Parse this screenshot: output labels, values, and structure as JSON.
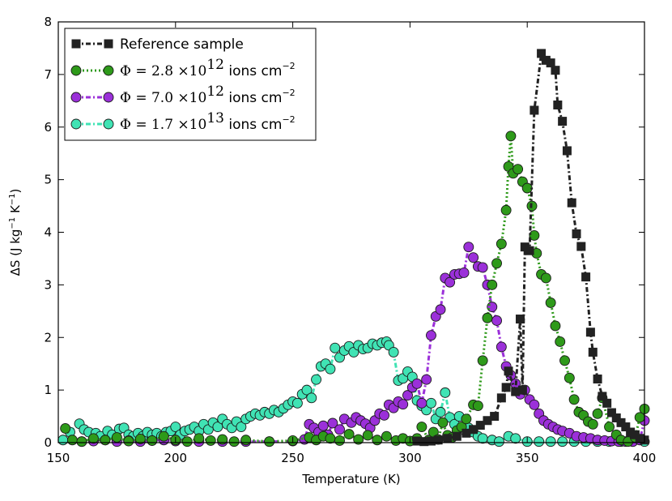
{
  "chart_data": {
    "type": "line",
    "title": "",
    "xlabel": "Temperature (K)",
    "ylabel_parts": {
      "base": "ΔS (J kg",
      "exp1": "−1",
      "mid": " K",
      "exp2": "−1",
      "end": ")"
    },
    "xlim": [
      150,
      400
    ],
    "ylim": [
      0,
      8
    ],
    "xticks": [
      150,
      200,
      250,
      300,
      350,
      400
    ],
    "yticks": [
      0,
      1,
      2,
      3,
      4,
      5,
      6,
      7,
      8
    ],
    "grid": false,
    "legend_position": "upper-left",
    "series": [
      {
        "name": "Reference sample",
        "legend": {
          "plain": "Reference sample"
        },
        "color": "#222222",
        "marker": "square",
        "line": "dash-dot",
        "points": [
          [
            303,
            0.03
          ],
          [
            306,
            0.02
          ],
          [
            309,
            0.03
          ],
          [
            312,
            0.05
          ],
          [
            316,
            0.08
          ],
          [
            320,
            0.12
          ],
          [
            324,
            0.18
          ],
          [
            327,
            0.25
          ],
          [
            330,
            0.33
          ],
          [
            333,
            0.42
          ],
          [
            336,
            0.5
          ],
          [
            339,
            0.85
          ],
          [
            341,
            1.05
          ],
          [
            342,
            1.36
          ],
          [
            345,
            0.97
          ],
          [
            347,
            2.35
          ],
          [
            348,
            1.0
          ],
          [
            349,
            3.72
          ],
          [
            351,
            3.65
          ],
          [
            353,
            6.32
          ],
          [
            356,
            7.4
          ],
          [
            358,
            7.27
          ],
          [
            360,
            7.22
          ],
          [
            362,
            7.08
          ],
          [
            363,
            6.42
          ],
          [
            365,
            6.11
          ],
          [
            367,
            5.55
          ],
          [
            369,
            4.56
          ],
          [
            371,
            3.97
          ],
          [
            373,
            3.73
          ],
          [
            375,
            3.15
          ],
          [
            377,
            2.1
          ],
          [
            378,
            1.72
          ],
          [
            380,
            1.21
          ],
          [
            382,
            0.88
          ],
          [
            384,
            0.75
          ],
          [
            386,
            0.57
          ],
          [
            388,
            0.47
          ],
          [
            390,
            0.38
          ],
          [
            392,
            0.3
          ],
          [
            394,
            0.2
          ],
          [
            396,
            0.15
          ],
          [
            398,
            0.08
          ],
          [
            400,
            0.05
          ]
        ]
      },
      {
        "name": "Φ = 2.8 ×10^12 ions cm^−2",
        "legend": {
          "phi": "Φ = 2.8 ×10",
          "exp": "12",
          "unit": " ions cm",
          "unit_exp": "−2"
        },
        "color": "#2e9a1a",
        "marker": "circle",
        "line": "dotted",
        "points": [
          [
            153,
            0.27
          ],
          [
            156,
            0.05
          ],
          [
            160,
            0.02
          ],
          [
            165,
            0.08
          ],
          [
            170,
            0.05
          ],
          [
            175,
            0.1
          ],
          [
            180,
            0.03
          ],
          [
            185,
            0.07
          ],
          [
            190,
            0.04
          ],
          [
            195,
            0.12
          ],
          [
            200,
            0.05
          ],
          [
            205,
            0.02
          ],
          [
            210,
            0.08
          ],
          [
            215,
            0.04
          ],
          [
            220,
            0.06
          ],
          [
            225,
            0.02
          ],
          [
            230,
            0.05
          ],
          [
            240,
            0.02
          ],
          [
            250,
            0.04
          ],
          [
            257,
            0.1
          ],
          [
            260,
            0.05
          ],
          [
            263,
            0.12
          ],
          [
            266,
            0.08
          ],
          [
            270,
            0.04
          ],
          [
            274,
            0.16
          ],
          [
            278,
            0.06
          ],
          [
            282,
            0.14
          ],
          [
            286,
            0.05
          ],
          [
            290,
            0.12
          ],
          [
            294,
            0.04
          ],
          [
            297,
            0.08
          ],
          [
            300,
            0.03
          ],
          [
            303,
            0.08
          ],
          [
            305,
            0.3
          ],
          [
            308,
            0.05
          ],
          [
            310,
            0.2
          ],
          [
            312,
            0.06
          ],
          [
            314,
            0.38
          ],
          [
            316,
            0.14
          ],
          [
            318,
            0.1
          ],
          [
            320,
            0.23
          ],
          [
            322,
            0.3
          ],
          [
            324,
            0.45
          ],
          [
            327,
            0.72
          ],
          [
            329,
            0.7
          ],
          [
            331,
            1.56
          ],
          [
            333,
            2.37
          ],
          [
            335,
            3.0
          ],
          [
            337,
            3.41
          ],
          [
            339,
            3.78
          ],
          [
            341,
            4.42
          ],
          [
            342,
            5.25
          ],
          [
            343,
            5.83
          ],
          [
            344,
            5.12
          ],
          [
            346,
            5.2
          ],
          [
            348,
            4.96
          ],
          [
            350,
            4.84
          ],
          [
            352,
            4.5
          ],
          [
            353,
            3.94
          ],
          [
            354,
            3.6
          ],
          [
            356,
            3.2
          ],
          [
            358,
            3.13
          ],
          [
            360,
            2.66
          ],
          [
            362,
            2.22
          ],
          [
            364,
            1.92
          ],
          [
            366,
            1.56
          ],
          [
            368,
            1.23
          ],
          [
            370,
            0.82
          ],
          [
            372,
            0.58
          ],
          [
            374,
            0.52
          ],
          [
            376,
            0.4
          ],
          [
            378,
            0.35
          ],
          [
            380,
            0.55
          ],
          [
            382,
            0.85
          ],
          [
            385,
            0.3
          ],
          [
            388,
            0.15
          ],
          [
            390,
            0.05
          ],
          [
            393,
            0.02
          ],
          [
            396,
            0.1
          ],
          [
            398,
            0.48
          ],
          [
            400,
            0.64
          ]
        ]
      },
      {
        "name": "Φ = 7.0 ×10^12 ions cm^−2",
        "legend": {
          "phi": "Φ = 7.0 ×10",
          "exp": "12",
          "unit": " ions cm",
          "unit_exp": "−2"
        },
        "color": "#9b30d9",
        "marker": "circle",
        "line": "dash-dot",
        "points": [
          [
            160,
            0.02
          ],
          [
            165,
            0.03
          ],
          [
            170,
            0.05
          ],
          [
            175,
            0.02
          ],
          [
            180,
            0.04
          ],
          [
            185,
            0.02
          ],
          [
            190,
            0.04
          ],
          [
            195,
            0.05
          ],
          [
            200,
            0.03
          ],
          [
            210,
            0.02
          ],
          [
            220,
            0.02
          ],
          [
            230,
            0.02
          ],
          [
            240,
            0.02
          ],
          [
            250,
            0.03
          ],
          [
            255,
            0.06
          ],
          [
            257,
            0.35
          ],
          [
            259,
            0.28
          ],
          [
            261,
            0.2
          ],
          [
            263,
            0.32
          ],
          [
            265,
            0.15
          ],
          [
            267,
            0.37
          ],
          [
            270,
            0.25
          ],
          [
            272,
            0.45
          ],
          [
            275,
            0.38
          ],
          [
            277,
            0.48
          ],
          [
            279,
            0.42
          ],
          [
            281,
            0.36
          ],
          [
            283,
            0.28
          ],
          [
            285,
            0.42
          ],
          [
            287,
            0.55
          ],
          [
            289,
            0.52
          ],
          [
            291,
            0.72
          ],
          [
            293,
            0.66
          ],
          [
            295,
            0.78
          ],
          [
            297,
            0.73
          ],
          [
            299,
            0.9
          ],
          [
            301,
            1.05
          ],
          [
            303,
            1.12
          ],
          [
            305,
            0.75
          ],
          [
            307,
            1.2
          ],
          [
            309,
            2.04
          ],
          [
            311,
            2.4
          ],
          [
            313,
            2.53
          ],
          [
            315,
            3.13
          ],
          [
            317,
            3.05
          ],
          [
            319,
            3.2
          ],
          [
            321,
            3.21
          ],
          [
            323,
            3.23
          ],
          [
            325,
            3.72
          ],
          [
            327,
            3.52
          ],
          [
            329,
            3.35
          ],
          [
            331,
            3.33
          ],
          [
            333,
            3.0
          ],
          [
            335,
            2.58
          ],
          [
            337,
            2.32
          ],
          [
            339,
            1.82
          ],
          [
            341,
            1.45
          ],
          [
            343,
            1.28
          ],
          [
            345,
            1.12
          ],
          [
            347,
            0.92
          ],
          [
            349,
            1.0
          ],
          [
            351,
            0.82
          ],
          [
            353,
            0.72
          ],
          [
            355,
            0.55
          ],
          [
            357,
            0.42
          ],
          [
            359,
            0.35
          ],
          [
            361,
            0.3
          ],
          [
            363,
            0.25
          ],
          [
            365,
            0.22
          ],
          [
            368,
            0.18
          ],
          [
            371,
            0.12
          ],
          [
            374,
            0.1
          ],
          [
            377,
            0.08
          ],
          [
            380,
            0.05
          ],
          [
            383,
            0.04
          ],
          [
            386,
            0.03
          ],
          [
            389,
            0.02
          ],
          [
            392,
            0.02
          ],
          [
            395,
            0.02
          ],
          [
            398,
            0.05
          ],
          [
            400,
            0.42
          ]
        ]
      },
      {
        "name": "Φ = 1.7 ×10^13 ions cm^−2",
        "legend": {
          "phi": "Φ = 1.7 ×10",
          "exp": "13",
          "unit": " ions cm",
          "unit_exp": "−2"
        },
        "color": "#40e3b4",
        "marker": "circle",
        "line": "dash-dot",
        "points": [
          [
            152,
            0.05
          ],
          [
            155,
            0.2
          ],
          [
            159,
            0.36
          ],
          [
            161,
            0.25
          ],
          [
            163,
            0.2
          ],
          [
            166,
            0.18
          ],
          [
            168,
            0.12
          ],
          [
            171,
            0.22
          ],
          [
            173,
            0.15
          ],
          [
            176,
            0.26
          ],
          [
            178,
            0.28
          ],
          [
            180,
            0.15
          ],
          [
            182,
            0.12
          ],
          [
            184,
            0.18
          ],
          [
            186,
            0.12
          ],
          [
            188,
            0.2
          ],
          [
            190,
            0.15
          ],
          [
            192,
            0.18
          ],
          [
            194,
            0.12
          ],
          [
            196,
            0.2
          ],
          [
            198,
            0.22
          ],
          [
            200,
            0.3
          ],
          [
            202,
            0.15
          ],
          [
            204,
            0.22
          ],
          [
            206,
            0.25
          ],
          [
            208,
            0.3
          ],
          [
            210,
            0.22
          ],
          [
            212,
            0.35
          ],
          [
            214,
            0.25
          ],
          [
            216,
            0.38
          ],
          [
            218,
            0.3
          ],
          [
            220,
            0.45
          ],
          [
            222,
            0.35
          ],
          [
            224,
            0.28
          ],
          [
            226,
            0.4
          ],
          [
            228,
            0.3
          ],
          [
            230,
            0.45
          ],
          [
            232,
            0.5
          ],
          [
            234,
            0.55
          ],
          [
            236,
            0.52
          ],
          [
            238,
            0.58
          ],
          [
            240,
            0.55
          ],
          [
            242,
            0.62
          ],
          [
            244,
            0.58
          ],
          [
            246,
            0.65
          ],
          [
            248,
            0.72
          ],
          [
            250,
            0.78
          ],
          [
            252,
            0.75
          ],
          [
            254,
            0.92
          ],
          [
            256,
            1.0
          ],
          [
            258,
            0.85
          ],
          [
            260,
            1.2
          ],
          [
            262,
            1.45
          ],
          [
            264,
            1.5
          ],
          [
            266,
            1.4
          ],
          [
            268,
            1.8
          ],
          [
            270,
            1.62
          ],
          [
            272,
            1.75
          ],
          [
            274,
            1.83
          ],
          [
            276,
            1.72
          ],
          [
            278,
            1.85
          ],
          [
            280,
            1.78
          ],
          [
            282,
            1.8
          ],
          [
            284,
            1.88
          ],
          [
            286,
            1.85
          ],
          [
            288,
            1.9
          ],
          [
            290,
            1.92
          ],
          [
            291,
            1.85
          ],
          [
            293,
            1.72
          ],
          [
            295,
            1.18
          ],
          [
            297,
            1.22
          ],
          [
            299,
            1.35
          ],
          [
            301,
            1.25
          ],
          [
            303,
            0.8
          ],
          [
            305,
            0.7
          ],
          [
            307,
            0.62
          ],
          [
            309,
            0.75
          ],
          [
            311,
            0.45
          ],
          [
            313,
            0.58
          ],
          [
            315,
            0.95
          ],
          [
            317,
            0.48
          ],
          [
            319,
            0.35
          ],
          [
            321,
            0.5
          ],
          [
            323,
            0.3
          ],
          [
            325,
            0.28
          ],
          [
            327,
            0.2
          ],
          [
            329,
            0.12
          ],
          [
            331,
            0.08
          ],
          [
            335,
            0.05
          ],
          [
            338,
            0.02
          ],
          [
            342,
            0.12
          ],
          [
            345,
            0.08
          ],
          [
            350,
            0.02
          ],
          [
            355,
            0.02
          ],
          [
            360,
            0.02
          ],
          [
            365,
            0.02
          ],
          [
            370,
            0.02
          ],
          [
            375,
            0.02
          ],
          [
            380,
            0.02
          ],
          [
            385,
            0.02
          ],
          [
            390,
            0.02
          ],
          [
            395,
            0.02
          ],
          [
            400,
            0.02
          ]
        ]
      }
    ]
  }
}
